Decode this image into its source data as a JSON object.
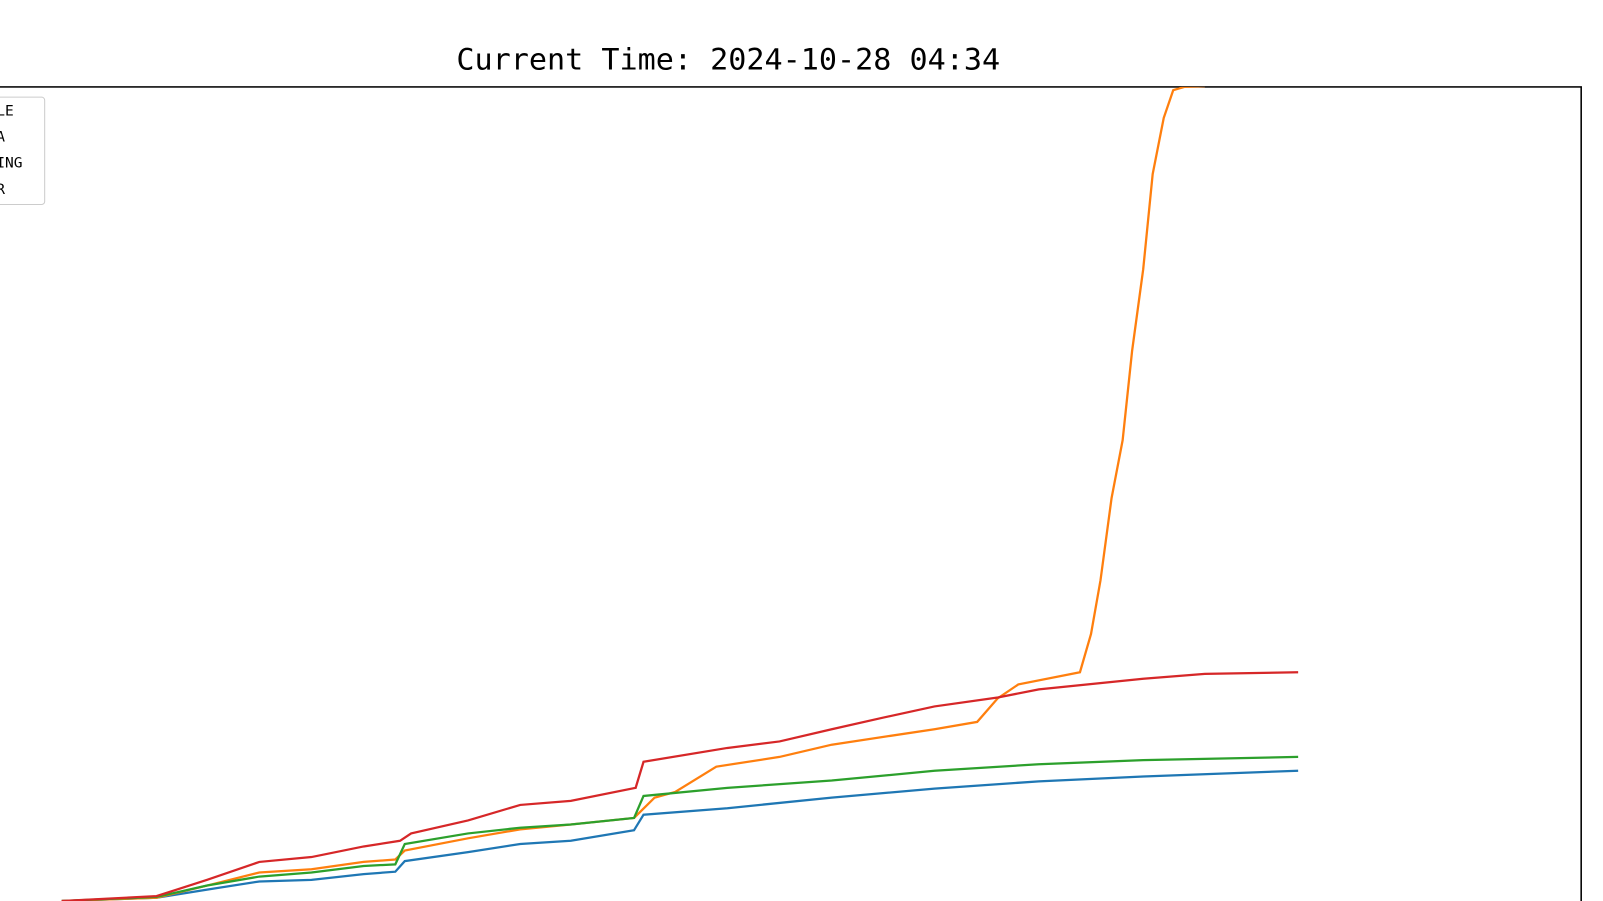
{
  "chart_data": {
    "type": "line",
    "title": "Current Time: 2024-10-28 04:34",
    "xlim": [
      0,
      100
    ],
    "ylim": [
      0,
      100
    ],
    "series": [
      {
        "name": "LLE",
        "color": "#1f77b4",
        "x": [
          3.9,
          9.9,
          13.1,
          16.4,
          19.7,
          23.0,
          25.0,
          25.6,
          29.6,
          32.9,
          36.1,
          40.1,
          40.7,
          46.0,
          52.6,
          59.1,
          65.7,
          72.3,
          82.1
        ],
        "values": [
          0,
          0.4,
          1.4,
          2.4,
          2.6,
          3.3,
          3.6,
          4.9,
          6.0,
          7.0,
          7.4,
          8.7,
          10.6,
          11.4,
          12.7,
          13.8,
          14.7,
          15.3,
          16.0
        ]
      },
      {
        "name": "NA",
        "color": "#ff7f0e",
        "x": [
          3.9,
          9.9,
          13.1,
          16.4,
          19.7,
          23.0,
          25.0,
          25.6,
          29.6,
          32.9,
          36.1,
          40.1,
          41.4,
          42.7,
          45.3,
          49.3,
          52.6,
          59.1,
          61.8,
          63.1,
          64.4,
          68.3,
          69.0,
          69.6,
          70.3,
          71.0,
          71.6,
          72.3,
          72.9,
          73.6,
          74.2,
          74.9,
          76.2
        ],
        "values": [
          0,
          0.4,
          1.9,
          3.5,
          3.9,
          4.8,
          5.1,
          6.2,
          7.7,
          8.8,
          9.4,
          10.2,
          12.7,
          13.4,
          16.5,
          17.7,
          19.2,
          21.1,
          22.0,
          24.9,
          26.6,
          28.1,
          32.8,
          39.4,
          49.5,
          56.6,
          67.6,
          77.6,
          89.3,
          96.2,
          99.6,
          100.0,
          100.1
        ]
      },
      {
        "name": "IING",
        "color": "#2ca02c",
        "x": [
          3.9,
          9.9,
          13.1,
          16.4,
          19.7,
          23.0,
          25.0,
          25.6,
          29.6,
          32.9,
          36.1,
          40.1,
          40.7,
          46.0,
          52.6,
          59.1,
          65.7,
          72.3,
          82.1
        ],
        "values": [
          0,
          0.5,
          1.9,
          3.0,
          3.5,
          4.3,
          4.5,
          7.0,
          8.3,
          9.0,
          9.4,
          10.2,
          12.9,
          13.9,
          14.8,
          16.0,
          16.8,
          17.3,
          17.7
        ]
      },
      {
        "name": "ER",
        "color": "#d62728",
        "x": [
          3.9,
          9.9,
          13.1,
          16.4,
          19.7,
          23.0,
          25.3,
          26.0,
          29.6,
          32.9,
          36.1,
          40.2,
          40.7,
          46.0,
          49.3,
          52.6,
          55.8,
          59.1,
          63.1,
          65.7,
          72.3,
          76.2,
          82.1
        ],
        "values": [
          0,
          0.6,
          2.6,
          4.8,
          5.4,
          6.7,
          7.4,
          8.3,
          9.9,
          11.8,
          12.3,
          13.9,
          17.1,
          18.8,
          19.6,
          21.1,
          22.5,
          23.9,
          25.0,
          26.0,
          27.3,
          27.9,
          28.1
        ]
      }
    ]
  }
}
